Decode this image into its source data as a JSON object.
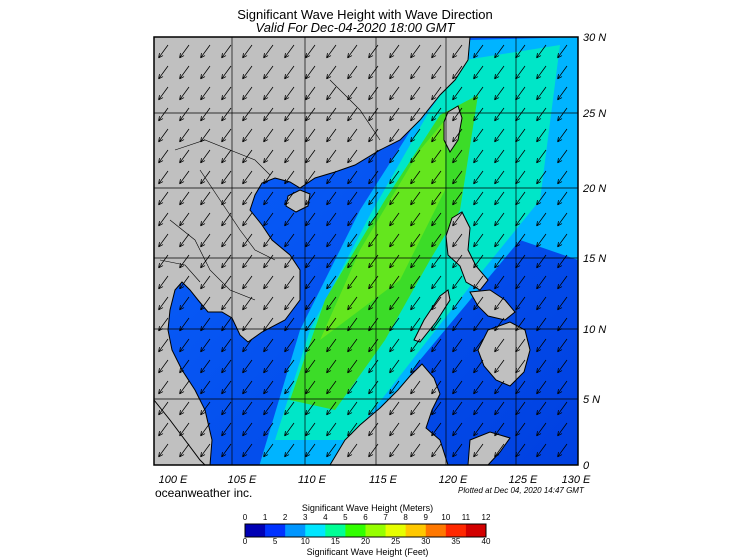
{
  "title": "Significant Wave Height with Wave Direction",
  "subtitle": "Valid For Dec-04-2020 18:00 GMT",
  "credit": "oceanweather inc.",
  "plotted": "Plotted at Dec 04, 2020 14:47 GMT",
  "lat_labels": [
    "30 N",
    "25 N",
    "20 N",
    "15 N",
    "10 N",
    "5 N",
    "0"
  ],
  "lon_labels": [
    "100 E",
    "105 E",
    "110 E",
    "115 E",
    "120 E",
    "125 E",
    "130 E"
  ],
  "colorbar": {
    "title_top": "Significant Wave Height (Meters)",
    "title_bottom": "Significant Wave Height (Feet)",
    "meters_ticks": [
      "0",
      "1",
      "2",
      "3",
      "4",
      "5",
      "6",
      "7",
      "8",
      "9",
      "10",
      "11",
      "12"
    ],
    "feet_ticks": [
      "0",
      "5",
      "10",
      "15",
      "20",
      "25",
      "30",
      "35",
      "40"
    ],
    "colors": [
      "#0000b4",
      "#0032ff",
      "#0096ff",
      "#00e6ff",
      "#00ff96",
      "#32ff00",
      "#96ff00",
      "#e6ff00",
      "#ffc800",
      "#ff7800",
      "#ff2800",
      "#d20000"
    ]
  },
  "colors": {
    "land": "#c0c0c0",
    "ocean_calm": "#0050ff",
    "ocean_high": "#40e020",
    "arrow": "#000000"
  }
}
